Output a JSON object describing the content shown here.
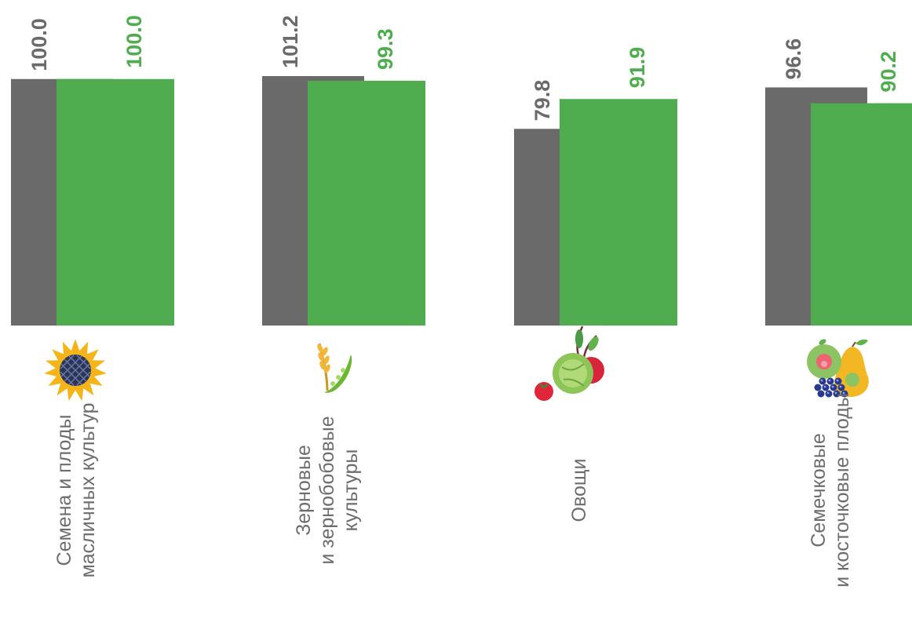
{
  "chart_data": {
    "type": "bar",
    "orientation": "vertical",
    "categories": [
      [
        "Семена и плоды",
        "масличных культур"
      ],
      [
        "Зерновые",
        "и  зернобобовые",
        "культуры"
      ],
      [
        "Овощи"
      ],
      [
        "Семечковые",
        "и косточковые плоды"
      ]
    ],
    "series": [
      {
        "values": [
          100.0,
          101.2,
          79.8,
          96.6
        ],
        "labels": [
          "100.0",
          "101.2",
          "79.8",
          "96.6"
        ]
      },
      {
        "values": [
          100.0,
          99.3,
          91.9,
          90.2
        ],
        "labels": [
          "100.0",
          "99.3",
          "91.9",
          "90.2"
        ]
      }
    ],
    "ylim": [
      0,
      101.2
    ],
    "colors": [
      "#6a6a6a",
      "#4fad4f"
    ],
    "category_icons": [
      "sunflower-icon",
      "wheat-pea-icon",
      "vegetables-icon",
      "fruits-icon"
    ],
    "data_labels": true,
    "rotated_labels": true,
    "grid": false,
    "legend": "none"
  }
}
